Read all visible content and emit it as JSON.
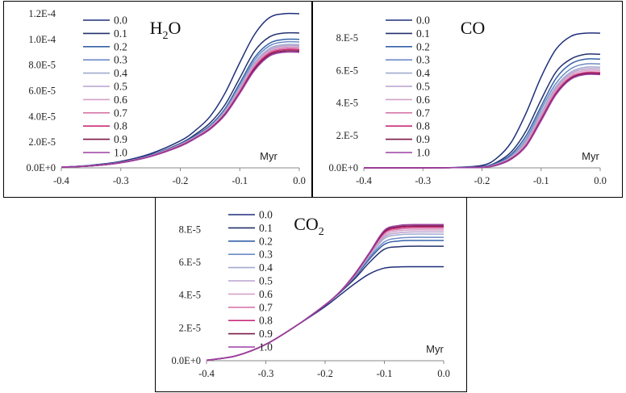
{
  "chart_data": [
    {
      "type": "line",
      "title": "H2O",
      "title_base": "H",
      "title_sub": "2",
      "title_tail": "O",
      "xlabel": "Myr",
      "xlim": [
        -0.4,
        0.0
      ],
      "ylim": [
        0,
        0.00012
      ],
      "xticks": [
        -0.4,
        -0.3,
        -0.2,
        -0.1,
        0.0
      ],
      "xtick_labels": [
        "-0.4",
        "-0.3",
        "-0.2",
        "-0.1",
        "0.0"
      ],
      "yticks": [
        0,
        2e-05,
        4e-05,
        6e-05,
        8e-05,
        0.0001,
        0.00012
      ],
      "ytick_labels": [
        "0.0E+0",
        "2.0E-5",
        "4.0E-5",
        "6.0E-5",
        "8.0E-5",
        "1.0E-4",
        "1.2E-4"
      ],
      "legend_position": "top-left",
      "x": [
        -0.4,
        -0.35,
        -0.3,
        -0.25,
        -0.2,
        -0.175,
        -0.15,
        -0.125,
        -0.1,
        -0.075,
        -0.05,
        -0.025,
        0.0
      ],
      "series": [
        {
          "name": "0.0",
          "color": "#1f2f7a",
          "values": [
            5e-07,
            2e-06,
            5e-06,
            1.1e-05,
            2.1e-05,
            2.9e-05,
            4e-05,
            5.8e-05,
            8.2e-05,
            0.000104,
            0.000117,
            0.00012,
            0.00012
          ]
        },
        {
          "name": "0.1",
          "color": "#23326e",
          "values": [
            5e-07,
            1.8e-06,
            4.6e-06,
            1e-05,
            1.9e-05,
            2.6e-05,
            3.5e-05,
            4.9e-05,
            7e-05,
            9.1e-05,
            0.000102,
            0.000105,
            0.000105
          ]
        },
        {
          "name": "0.2",
          "color": "#3560a8",
          "values": [
            5e-07,
            1.7e-06,
            4.4e-06,
            9.8e-06,
            1.85e-05,
            2.5e-05,
            3.3e-05,
            4.6e-05,
            6.6e-05,
            8.6e-05,
            9.7e-05,
            0.0001,
            0.0001
          ]
        },
        {
          "name": "0.3",
          "color": "#6d8bc6",
          "values": [
            5e-07,
            1.7e-06,
            4.3e-06,
            9.6e-06,
            1.82e-05,
            2.45e-05,
            3.2e-05,
            4.5e-05,
            6.4e-05,
            8.4e-05,
            9.5e-05,
            9.8e-05,
            9.8e-05
          ]
        },
        {
          "name": "0.4",
          "color": "#a3aacf",
          "values": [
            5e-07,
            1.6e-06,
            4.2e-06,
            9.4e-06,
            1.8e-05,
            2.4e-05,
            3.2e-05,
            4.4e-05,
            6.3e-05,
            8.2e-05,
            9.3e-05,
            9.6e-05,
            9.6e-05
          ]
        },
        {
          "name": "0.5",
          "color": "#b9a2cd",
          "values": [
            5e-07,
            1.6e-06,
            4.2e-06,
            9.3e-06,
            1.78e-05,
            2.38e-05,
            3.1e-05,
            4.3e-05,
            6.2e-05,
            8.1e-05,
            9.2e-05,
            9.5e-05,
            9.5e-05
          ]
        },
        {
          "name": "0.6",
          "color": "#d4a2c9",
          "values": [
            5e-07,
            1.6e-06,
            4.1e-06,
            9.2e-06,
            1.76e-05,
            2.36e-05,
            3.1e-05,
            4.3e-05,
            6.1e-05,
            8e-05,
            9.1e-05,
            9.4e-05,
            9.4e-05
          ]
        },
        {
          "name": "0.7",
          "color": "#d877aa",
          "values": [
            5e-07,
            1.6e-06,
            4.1e-06,
            9.1e-06,
            1.74e-05,
            2.34e-05,
            3.1e-05,
            4.2e-05,
            6e-05,
            7.9e-05,
            9e-05,
            9.3e-05,
            9.3e-05
          ]
        },
        {
          "name": "0.8",
          "color": "#c92c7a",
          "values": [
            5e-07,
            1.5e-06,
            4e-06,
            9e-06,
            1.72e-05,
            2.32e-05,
            3.05e-05,
            4.2e-05,
            5.9e-05,
            7.8e-05,
            8.9e-05,
            9.2e-05,
            9.2e-05
          ]
        },
        {
          "name": "0.9",
          "color": "#7a1848",
          "values": [
            5e-07,
            1.5e-06,
            4e-06,
            8.9e-06,
            1.7e-05,
            2.3e-05,
            3.02e-05,
            4.15e-05,
            5.85e-05,
            7.7e-05,
            8.8e-05,
            9.1e-05,
            9.1e-05
          ]
        },
        {
          "name": "1.0",
          "color": "#9b3ea3",
          "values": [
            5e-07,
            1.5e-06,
            3.9e-06,
            8.8e-06,
            1.68e-05,
            2.28e-05,
            3e-05,
            4.1e-05,
            5.8e-05,
            7.6e-05,
            8.7e-05,
            9e-05,
            9e-05
          ]
        }
      ]
    },
    {
      "type": "line",
      "title": "CO",
      "title_base": "CO",
      "title_sub": "",
      "title_tail": "",
      "xlabel": "Myr",
      "xlim": [
        -0.4,
        0.0
      ],
      "ylim": [
        0,
        9.5e-05
      ],
      "xticks": [
        -0.4,
        -0.3,
        -0.2,
        -0.1,
        0.0
      ],
      "xtick_labels": [
        "-0.4",
        "-0.3",
        "-0.2",
        "-0.1",
        "0.0"
      ],
      "yticks": [
        0,
        2e-05,
        4e-05,
        6e-05,
        8e-05
      ],
      "ytick_labels": [
        "0.0E+0",
        "2.E-5",
        "4.E-5",
        "6.E-5",
        "8.E-5"
      ],
      "legend_position": "top-left",
      "x": [
        -0.4,
        -0.3,
        -0.25,
        -0.2,
        -0.175,
        -0.15,
        -0.125,
        -0.1,
        -0.075,
        -0.05,
        -0.025,
        0.0
      ],
      "series": [
        {
          "name": "0.0",
          "color": "#1f2f7a",
          "values": [
            0,
            0,
            2e-07,
            1.5e-06,
            6e-06,
            1.6e-05,
            3.4e-05,
            5.6e-05,
            7.3e-05,
            8.1e-05,
            8.3e-05,
            8.3e-05
          ]
        },
        {
          "name": "0.1",
          "color": "#23326e",
          "values": [
            0,
            0,
            1e-07,
            8e-07,
            3.5e-06,
            1e-05,
            2.3e-05,
            4.2e-05,
            5.9e-05,
            6.7e-05,
            7e-05,
            7e-05
          ]
        },
        {
          "name": "0.2",
          "color": "#3560a8",
          "values": [
            0,
            0,
            1e-07,
            6e-07,
            3e-06,
            8.5e-06,
            2e-05,
            3.8e-05,
            5.5e-05,
            6.4e-05,
            6.7e-05,
            6.7e-05
          ]
        },
        {
          "name": "0.3",
          "color": "#6d8bc6",
          "values": [
            0,
            0,
            1e-07,
            5e-07,
            2.5e-06,
            7.5e-06,
            1.8e-05,
            3.6e-05,
            5.2e-05,
            6.1e-05,
            6.4e-05,
            6.4e-05
          ]
        },
        {
          "name": "0.4",
          "color": "#a3aacf",
          "values": [
            0,
            0,
            1e-07,
            5e-07,
            2.3e-06,
            7e-06,
            1.7e-05,
            3.4e-05,
            5e-05,
            5.9e-05,
            6.2e-05,
            6.2e-05
          ]
        },
        {
          "name": "0.5",
          "color": "#b9a2cd",
          "values": [
            0,
            0,
            1e-07,
            4e-07,
            2.1e-06,
            6.5e-06,
            1.6e-05,
            3.3e-05,
            4.9e-05,
            5.8e-05,
            6.1e-05,
            6.1e-05
          ]
        },
        {
          "name": "0.6",
          "color": "#d4a2c9",
          "values": [
            0,
            0,
            1e-07,
            4e-07,
            2e-06,
            6.2e-06,
            1.5e-05,
            3.2e-05,
            4.8e-05,
            5.7e-05,
            6e-05,
            6e-05
          ]
        },
        {
          "name": "0.7",
          "color": "#d877aa",
          "values": [
            0,
            0,
            1e-07,
            4e-07,
            1.9e-06,
            6e-06,
            1.45e-05,
            3.1e-05,
            4.7e-05,
            5.6e-05,
            5.9e-05,
            5.9e-05
          ]
        },
        {
          "name": "0.8",
          "color": "#c92c7a",
          "values": [
            0,
            0,
            1e-07,
            3e-07,
            1.8e-06,
            5.8e-06,
            1.4e-05,
            3e-05,
            4.6e-05,
            5.55e-05,
            5.85e-05,
            5.85e-05
          ]
        },
        {
          "name": "0.9",
          "color": "#7a1848",
          "values": [
            0,
            0,
            1e-07,
            3e-07,
            1.7e-06,
            5.6e-06,
            1.38e-05,
            2.95e-05,
            4.55e-05,
            5.5e-05,
            5.8e-05,
            5.8e-05
          ]
        },
        {
          "name": "1.0",
          "color": "#9b3ea3",
          "values": [
            0,
            0,
            1e-07,
            3e-07,
            1.6e-06,
            5.4e-06,
            1.35e-05,
            2.9e-05,
            4.5e-05,
            5.45e-05,
            5.75e-05,
            5.75e-05
          ]
        }
      ]
    },
    {
      "type": "line",
      "title": "CO2",
      "title_base": "CO",
      "title_sub": "2",
      "title_tail": "",
      "xlabel": "Myr",
      "xlim": [
        -0.4,
        0.0
      ],
      "ylim": [
        0,
        9.2e-05
      ],
      "xticks": [
        -0.4,
        -0.3,
        -0.2,
        -0.1,
        0.0
      ],
      "xtick_labels": [
        "-0.4",
        "-0.3",
        "-0.2",
        "-0.1",
        "0.0"
      ],
      "yticks": [
        0,
        2e-05,
        4e-05,
        6e-05,
        8e-05
      ],
      "ytick_labels": [
        "0.0E+0",
        "2.E-5",
        "4.E-5",
        "6.E-5",
        "8.E-5"
      ],
      "legend_position": "top-left",
      "x": [
        -0.4,
        -0.35,
        -0.3,
        -0.25,
        -0.2,
        -0.175,
        -0.15,
        -0.125,
        -0.1,
        -0.075,
        -0.05,
        -0.025,
        0.0
      ],
      "series": [
        {
          "name": "0.0",
          "color": "#1f2f7a",
          "values": [
            3e-07,
            3e-06,
            1e-05,
            2.1e-05,
            3.3e-05,
            4e-05,
            4.7e-05,
            5.3e-05,
            5.65e-05,
            5.72e-05,
            5.73e-05,
            5.73e-05,
            5.73e-05
          ]
        },
        {
          "name": "0.1",
          "color": "#23326e",
          "values": [
            3e-07,
            3e-06,
            1e-05,
            2.1e-05,
            3.4e-05,
            4.15e-05,
            5e-05,
            6e-05,
            6.8e-05,
            6.95e-05,
            6.98e-05,
            6.98e-05,
            6.98e-05
          ]
        },
        {
          "name": "0.2",
          "color": "#3560a8",
          "values": [
            3e-07,
            3e-06,
            1e-05,
            2.1e-05,
            3.4e-05,
            4.2e-05,
            5.1e-05,
            6.2e-05,
            7.1e-05,
            7.3e-05,
            7.33e-05,
            7.33e-05,
            7.33e-05
          ]
        },
        {
          "name": "0.3",
          "color": "#6d8bc6",
          "values": [
            3e-07,
            3e-06,
            1e-05,
            2.1e-05,
            3.4e-05,
            4.2e-05,
            5.15e-05,
            6.3e-05,
            7.25e-05,
            7.48e-05,
            7.52e-05,
            7.52e-05,
            7.52e-05
          ]
        },
        {
          "name": "0.4",
          "color": "#a3aacf",
          "values": [
            3e-07,
            3e-06,
            1e-05,
            2.1e-05,
            3.4e-05,
            4.2e-05,
            5.2e-05,
            6.4e-05,
            7.45e-05,
            7.68e-05,
            7.72e-05,
            7.72e-05,
            7.72e-05
          ]
        },
        {
          "name": "0.5",
          "color": "#b9a2cd",
          "values": [
            3e-07,
            3e-06,
            1e-05,
            2.1e-05,
            3.4e-05,
            4.2e-05,
            5.2e-05,
            6.45e-05,
            7.55e-05,
            7.8e-05,
            7.85e-05,
            7.85e-05,
            7.85e-05
          ]
        },
        {
          "name": "0.6",
          "color": "#d4a2c9",
          "values": [
            3e-07,
            3e-06,
            1e-05,
            2.1e-05,
            3.4e-05,
            4.2e-05,
            5.22e-05,
            6.5e-05,
            7.65e-05,
            7.92e-05,
            7.97e-05,
            7.97e-05,
            7.97e-05
          ]
        },
        {
          "name": "0.7",
          "color": "#d877aa",
          "values": [
            3e-07,
            3e-06,
            1e-05,
            2.1e-05,
            3.4e-05,
            4.2e-05,
            5.24e-05,
            6.53e-05,
            7.75e-05,
            8.02e-05,
            8.07e-05,
            8.07e-05,
            8.07e-05
          ]
        },
        {
          "name": "0.8",
          "color": "#c92c7a",
          "values": [
            3e-07,
            3e-06,
            1e-05,
            2.1e-05,
            3.4e-05,
            4.2e-05,
            5.26e-05,
            6.56e-05,
            7.82e-05,
            8.1e-05,
            8.15e-05,
            8.15e-05,
            8.15e-05
          ]
        },
        {
          "name": "0.9",
          "color": "#7a1848",
          "values": [
            3e-07,
            3e-06,
            1e-05,
            2.1e-05,
            3.4e-05,
            4.2e-05,
            5.28e-05,
            6.58e-05,
            7.88e-05,
            8.17e-05,
            8.22e-05,
            8.22e-05,
            8.22e-05
          ]
        },
        {
          "name": "1.0",
          "color": "#9b3ea3",
          "values": [
            3e-07,
            3e-06,
            1e-05,
            2.1e-05,
            3.4e-05,
            4.2e-05,
            5.3e-05,
            6.6e-05,
            7.95e-05,
            8.25e-05,
            8.3e-05,
            8.3e-05,
            8.3e-05
          ]
        }
      ]
    }
  ]
}
